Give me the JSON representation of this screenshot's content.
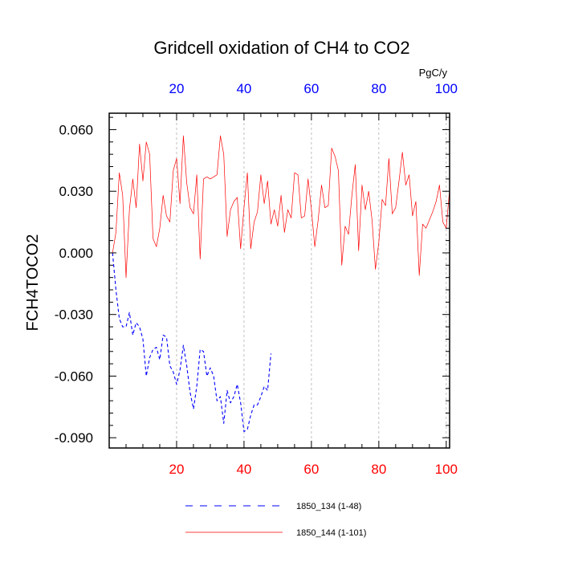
{
  "chart_data": {
    "type": "line",
    "title": "Gridcell oxidation of CH4 to CO2",
    "ylabel": "FCH4TOCO2",
    "top_axis_units": "PgC/y",
    "xlim": [
      0,
      101
    ],
    "ylim": [
      -0.095,
      0.068
    ],
    "bottom_ticks": [
      20,
      40,
      60,
      80,
      100
    ],
    "bottom_tick_labels": [
      "20",
      "40",
      "60",
      "80",
      "100"
    ],
    "top_ticks": [
      20,
      40,
      60,
      80,
      100
    ],
    "top_tick_labels": [
      "20",
      "40",
      "60",
      "80",
      "100"
    ],
    "yticks": [
      0.06,
      0.03,
      0.0,
      -0.03,
      -0.06,
      -0.09
    ],
    "ytick_labels": [
      "0.060",
      "0.030",
      "0.000",
      "-0.030",
      "-0.060",
      "-0.090"
    ],
    "grid": "vertical dashed at x ticks",
    "colors": {
      "bottom_ticks": "#ff0000",
      "top_ticks": "#0000ff",
      "series_1850_134": "#0000ff",
      "series_1850_144": "#ff0000"
    },
    "series": [
      {
        "name": "1850_134 (1-48)",
        "style": "dashed",
        "x": [
          1,
          2,
          3,
          4,
          5,
          6,
          7,
          8,
          9,
          10,
          11,
          12,
          13,
          14,
          15,
          16,
          17,
          18,
          19,
          20,
          21,
          22,
          23,
          24,
          25,
          26,
          27,
          28,
          29,
          30,
          31,
          32,
          33,
          34,
          35,
          36,
          37,
          38,
          39,
          40,
          41,
          42,
          43,
          44,
          45,
          46,
          47,
          48
        ],
        "values": [
          0.0,
          -0.018,
          -0.032,
          -0.036,
          -0.036,
          -0.029,
          -0.04,
          -0.034,
          -0.036,
          -0.042,
          -0.06,
          -0.051,
          -0.047,
          -0.046,
          -0.052,
          -0.04,
          -0.041,
          -0.055,
          -0.058,
          -0.064,
          -0.057,
          -0.045,
          -0.055,
          -0.068,
          -0.076,
          -0.065,
          -0.047,
          -0.048,
          -0.06,
          -0.056,
          -0.06,
          -0.072,
          -0.07,
          -0.083,
          -0.067,
          -0.073,
          -0.07,
          -0.064,
          -0.073,
          -0.087,
          -0.086,
          -0.079,
          -0.074,
          -0.074,
          -0.07,
          -0.065,
          -0.067,
          -0.049
        ]
      },
      {
        "name": "1850_144 (1-101)",
        "style": "solid",
        "x": [
          1,
          2,
          3,
          4,
          5,
          6,
          7,
          8,
          9,
          10,
          11,
          12,
          13,
          14,
          15,
          16,
          17,
          18,
          19,
          20,
          21,
          22,
          23,
          24,
          25,
          26,
          27,
          28,
          29,
          30,
          31,
          32,
          33,
          34,
          35,
          36,
          37,
          38,
          39,
          40,
          41,
          42,
          43,
          44,
          45,
          46,
          47,
          48,
          49,
          50,
          51,
          52,
          53,
          54,
          55,
          56,
          57,
          58,
          59,
          60,
          61,
          62,
          63,
          64,
          65,
          66,
          67,
          68,
          69,
          70,
          71,
          72,
          73,
          74,
          75,
          76,
          77,
          78,
          79,
          80,
          81,
          82,
          83,
          84,
          85,
          86,
          87,
          88,
          89,
          90,
          91,
          92,
          93,
          94,
          95,
          96,
          97,
          98,
          99,
          100,
          101
        ],
        "values": [
          0.0,
          0.01,
          0.039,
          0.028,
          -0.012,
          0.021,
          0.036,
          0.022,
          0.053,
          0.035,
          0.054,
          0.048,
          0.007,
          0.003,
          0.012,
          0.028,
          0.018,
          0.015,
          0.04,
          0.046,
          0.024,
          0.057,
          0.034,
          0.022,
          0.019,
          0.038,
          -0.003,
          0.036,
          0.037,
          0.036,
          0.037,
          0.038,
          0.057,
          0.048,
          0.008,
          0.021,
          0.025,
          0.027,
          0.002,
          0.022,
          0.039,
          0.002,
          0.015,
          0.02,
          0.038,
          0.024,
          0.035,
          0.014,
          0.021,
          0.013,
          0.028,
          0.01,
          0.021,
          0.017,
          0.039,
          0.038,
          0.017,
          0.018,
          0.036,
          0.021,
          0.003,
          0.016,
          0.033,
          0.022,
          0.023,
          0.051,
          0.047,
          0.04,
          -0.006,
          0.013,
          0.009,
          0.028,
          0.043,
          0.001,
          0.033,
          0.021,
          0.03,
          0.016,
          -0.008,
          0.005,
          0.026,
          0.023,
          0.046,
          0.019,
          0.022,
          0.035,
          0.049,
          0.033,
          0.038,
          0.018,
          0.025,
          -0.011,
          0.014,
          0.012,
          0.016,
          0.02,
          0.025,
          0.033,
          0.015,
          0.012,
          0.031
        ]
      }
    ],
    "legend": [
      {
        "label": "1850_134 (1-48)"
      },
      {
        "label": "1850_144 (1-101)"
      }
    ]
  }
}
